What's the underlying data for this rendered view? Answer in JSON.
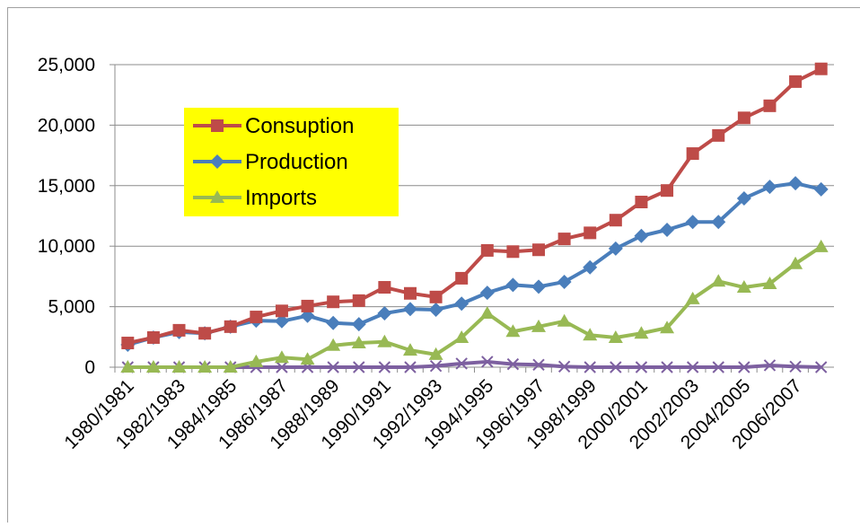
{
  "chart_data": {
    "type": "line",
    "categories": [
      "1980/1981",
      null,
      "1982/1983",
      null,
      "1984/1985",
      null,
      "1986/1987",
      null,
      "1988/1989",
      null,
      "1990/1991",
      null,
      "1992/1993",
      null,
      "1994/1995",
      null,
      "1996/1997",
      null,
      "1998/1999",
      null,
      "2000/2001",
      null,
      "2002/2003",
      null,
      "2004/2005",
      null,
      "2006/2007",
      null
    ],
    "series": [
      {
        "name": "Consuption",
        "color": "#be4b48",
        "marker": "square",
        "values": [
          2000,
          2450,
          3050,
          2800,
          3350,
          4150,
          4650,
          5050,
          5400,
          5500,
          6600,
          6100,
          5800,
          7350,
          9650,
          9550,
          9700,
          10600,
          11100,
          12150,
          13650,
          14600,
          17650,
          19150,
          20600,
          21600,
          23600,
          24650
        ]
      },
      {
        "name": "Production",
        "color": "#4a7ebb",
        "marker": "diamond",
        "values": [
          1850,
          2450,
          2900,
          2800,
          3350,
          3850,
          3800,
          4250,
          3650,
          3550,
          4450,
          4800,
          4750,
          5250,
          6150,
          6800,
          6650,
          7050,
          8250,
          9800,
          10850,
          11350,
          12000,
          12000,
          13950,
          14900,
          15200,
          14700
        ]
      },
      {
        "name": "Imports",
        "color": "#98b954",
        "marker": "triangle",
        "values": [
          0,
          0,
          0,
          0,
          0,
          450,
          800,
          650,
          1800,
          2000,
          2100,
          1400,
          1050,
          2450,
          4450,
          2950,
          3350,
          3800,
          2650,
          2450,
          2800,
          3250,
          5650,
          7100,
          6600,
          6900,
          8550,
          9950
        ]
      },
      {
        "color": "#7d60a0",
        "marker": "x",
        "values": [
          0,
          0,
          0,
          0,
          0,
          0,
          0,
          0,
          0,
          0,
          0,
          0,
          100,
          300,
          450,
          250,
          200,
          50,
          0,
          0,
          0,
          0,
          0,
          0,
          0,
          150,
          50,
          0
        ]
      }
    ],
    "ylim": [
      0,
      25000
    ],
    "yticks": [
      0,
      {
        "value": 5000,
        "label": "5,000"
      },
      {
        "value": 10000,
        "label": "10,000"
      },
      {
        "value": 15000,
        "label": "15,000"
      },
      {
        "value": 20000,
        "label": "20,000"
      },
      {
        "value": 25000,
        "label": "25,000"
      }
    ],
    "grid": true,
    "legend": "upper-left",
    "legend_color": "#ffff00"
  }
}
